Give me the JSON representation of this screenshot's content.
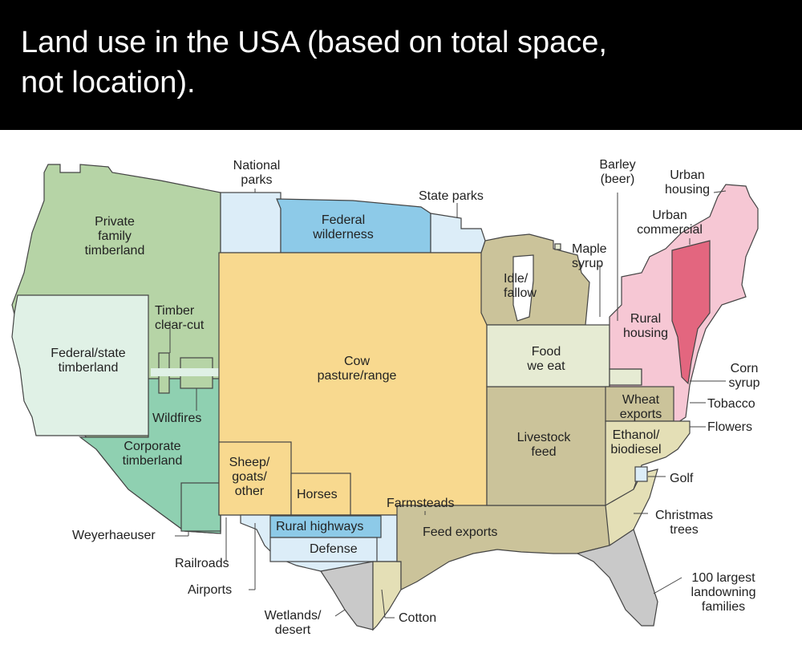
{
  "title": "Land use in the USA (based on total space,\nnot location).",
  "colors": {
    "forest_private": "#b6d4a6",
    "forest_federal": "#e0f1e6",
    "forest_corporate": "#8fd0b1",
    "pasture": "#f8d98f",
    "wilderness": "#8dcae8",
    "parks_light": "#dcedf8",
    "crops_olive": "#cbc39a",
    "food_pale": "#e6ebd3",
    "rural_housing": "#f6c7d4",
    "urban_commercial": "#e3667f",
    "gray": "#c9c9c9"
  },
  "labels": {
    "national_parks": "National\nparks",
    "federal_wilderness": "Federal\nwilderness",
    "state_parks": "State parks",
    "private_family_timberland": "Private\nfamily\ntimberland",
    "timber_clear_cut": "Timber\nclear-cut",
    "federal_state_timberland": "Federal/state\ntimberland",
    "wildfires": "Wildfires",
    "corporate_timberland": "Corporate\ntimberland",
    "cow_pasture": "Cow\npasture/range",
    "sheep_goats": "Sheep/\ngoats/\nother",
    "horses": "Horses",
    "farmsteads": "Farmsteads",
    "rural_highways": "Rural highways",
    "defense": "Defense",
    "weyerhaeuser": "Weyerhaeuser",
    "railroads": "Railroads",
    "airports": "Airports",
    "wetlands_desert": "Wetlands/\ndesert",
    "cotton": "Cotton",
    "feed_exports": "Feed exports",
    "livestock_feed": "Livestock\nfeed",
    "food_we_eat": "Food\nwe eat",
    "idle_fallow": "Idle/\nfallow",
    "maple_syrup": "Maple\nsyrup",
    "barley_beer": "Barley\n(beer)",
    "urban_housing": "Urban\nhousing",
    "urban_commercial": "Urban\ncommercial",
    "rural_housing": "Rural\nhousing",
    "corn_syrup": "Corn\nsyrup",
    "wheat_exports": "Wheat\nexports",
    "tobacco": "Tobacco",
    "ethanol_biodiesel": "Ethanol/\nbiodiesel",
    "flowers": "Flowers",
    "golf": "Golf",
    "christmas_trees": "Christmas\ntrees",
    "largest_families": "100 largest\nlandowning\nfamilies"
  }
}
